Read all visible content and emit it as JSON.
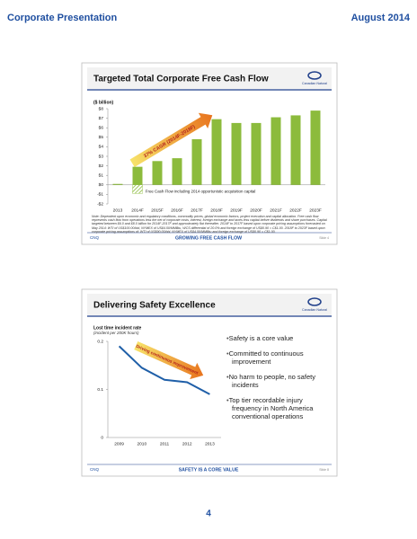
{
  "header": {
    "title": "Corporate Presentation",
    "date": "August 2014"
  },
  "page_number": "4",
  "slides": [
    {
      "logo": "Canadian Natural",
      "footer_left": "CNQ",
      "footer_center": "GROWING FREE CASH FLOW",
      "footer_right": "Slide 4"
    },
    {
      "logo": "Canadian Natural",
      "footer_left": "CNQ",
      "footer_center": "SAFETY IS A CORE VALUE",
      "footer_right": "Slide 8",
      "bullets": [
        "Safety is a core value",
        "Committed to continuous improvement",
        "No harm to people, no safety incidents",
        "Top tier recordable injury frequency in North America conventional operations"
      ]
    }
  ],
  "chart_data": [
    {
      "type": "bar",
      "title": "Targeted Total Corporate Free Cash Flow",
      "ylabel": "($ billion)",
      "categories": [
        "2013",
        "2014F",
        "2015F",
        "2016F",
        "2017F",
        "2018F",
        "2019F",
        "2020F",
        "2021F",
        "2022F",
        "2023F"
      ],
      "series": [
        {
          "color": "#8cbb3c",
          "values": [
            0.1,
            1.9,
            2.5,
            2.8,
            4.8,
            6.9,
            6.5,
            6.5,
            7.1,
            7.3,
            7.8
          ]
        },
        {
          "name": "Free Cash Flow including 2014 opportunistic acquisition capital",
          "color": "#8cbb3c",
          "pattern": "hatch",
          "values": [
            null,
            -0.9,
            null,
            null,
            null,
            null,
            null,
            null,
            null,
            null,
            null
          ]
        }
      ],
      "annotation": "37% CAGR (2014F-2018F)",
      "note": "Note: Dependent upon economic and regulatory conditions, commodity prices, global economic factors, project execution and capital allocation. Free cash flow represents cash flow from operations less the net of corporate costs, interest, foreign exchange and taxes less capital before dividends and share purchases. Capital targeted between $6.0 and $8.0 billion for 2014F-2017F and approximately flat thereafter. 2014F to 2017F based upon corporate pricing assumptions forecasted on May 2014: WTI of US$100.00/bbl, NYMEX of US$4.50/MMBtu, WCS differential of 20.0% and foreign exchange of US$0.90 = C$1.00. 2018F to 2023F based upon corporate pricing assumptions of: WTI of US$90.00/bbl, NYMEX of US$4.50/MMBtu and foreign exchange of US$0.90 = C$1.00.",
      "ylim": [
        -2,
        8
      ],
      "yticks": [
        {
          "value": 8,
          "label": "$8"
        },
        {
          "value": 7,
          "label": "$7"
        },
        {
          "value": 6,
          "label": "$6"
        },
        {
          "value": 5,
          "label": "$5"
        },
        {
          "value": 4,
          "label": "$4"
        },
        {
          "value": 3,
          "label": "$3"
        },
        {
          "value": 2,
          "label": "$2"
        },
        {
          "value": 1,
          "label": "$1"
        },
        {
          "value": 0,
          "label": "$0"
        },
        {
          "value": -1,
          "label": "-$1"
        },
        {
          "value": -2,
          "label": "-$2"
        }
      ]
    },
    {
      "type": "line",
      "title": "Delivering Safety Excellence",
      "ylabel": "Lost time incident rate",
      "ysublabel": "(incident per 200K hours)",
      "categories": [
        "2009",
        "2010",
        "2011",
        "2012",
        "2013"
      ],
      "values": [
        0.19,
        0.145,
        0.12,
        0.115,
        0.09
      ],
      "color": "#1f5fa8",
      "annotation": "Driving continuous improvement",
      "ylim": [
        0,
        0.2
      ],
      "yticks": [
        0,
        0.1,
        0.2
      ]
    }
  ]
}
